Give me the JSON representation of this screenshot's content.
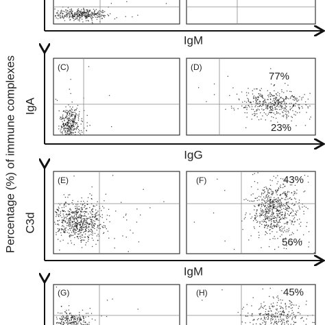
{
  "y_axis_title": "Percentage (%) of immune complexes",
  "x_labels": [
    "IgM",
    "IgG",
    "IgM"
  ],
  "y_labels": [
    "IgA",
    "C3d"
  ],
  "panels": [
    {
      "label": "(C)"
    },
    {
      "label": "(D)",
      "upper": "77%",
      "lower": "23%"
    },
    {
      "label": "(E)"
    },
    {
      "label": "(F)",
      "upper": "43%",
      "lower": "56%"
    },
    {
      "label": "(G)"
    },
    {
      "label": "(H)",
      "upper": "45%"
    }
  ]
}
